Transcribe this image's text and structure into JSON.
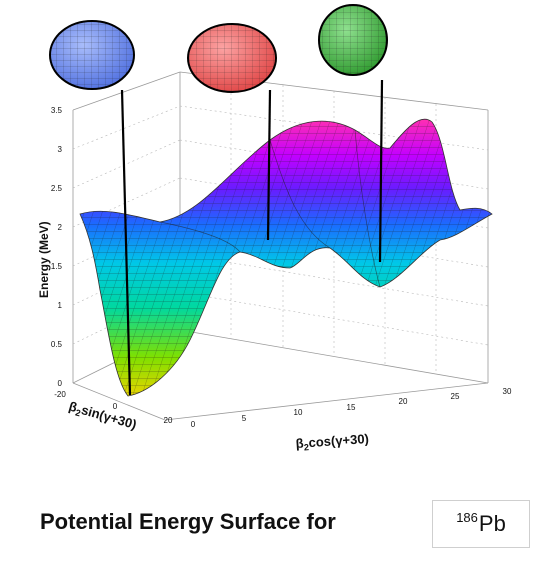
{
  "diagram": {
    "ylabel": "Energy (MeV)",
    "xlabel_html": "β<tspan font-size='9' dy='3'>2</tspan><tspan dy='-3'>cos(γ+30)</tspan>",
    "xlabel": "β2cos(γ+30)",
    "zlabel": "β2sin(γ+30)",
    "energy_ticks": [
      "0",
      "0.5",
      "1",
      "1.5",
      "2",
      "2.5",
      "3",
      "3.5"
    ],
    "x_ticks": [
      "0",
      "5",
      "10",
      "15",
      "20",
      "25",
      "30"
    ],
    "z_ticks": [
      "-20",
      "0",
      "20"
    ],
    "shapes": [
      {
        "name": "oblate",
        "color": "#6f8ef0"
      },
      {
        "name": "spherical",
        "color": "#ef6b6b"
      },
      {
        "name": "prolate",
        "color": "#4fb04f"
      }
    ]
  },
  "caption": {
    "text": "Potential Energy Surface for",
    "isotope_mass": "186",
    "isotope_symbol": "Pb"
  }
}
